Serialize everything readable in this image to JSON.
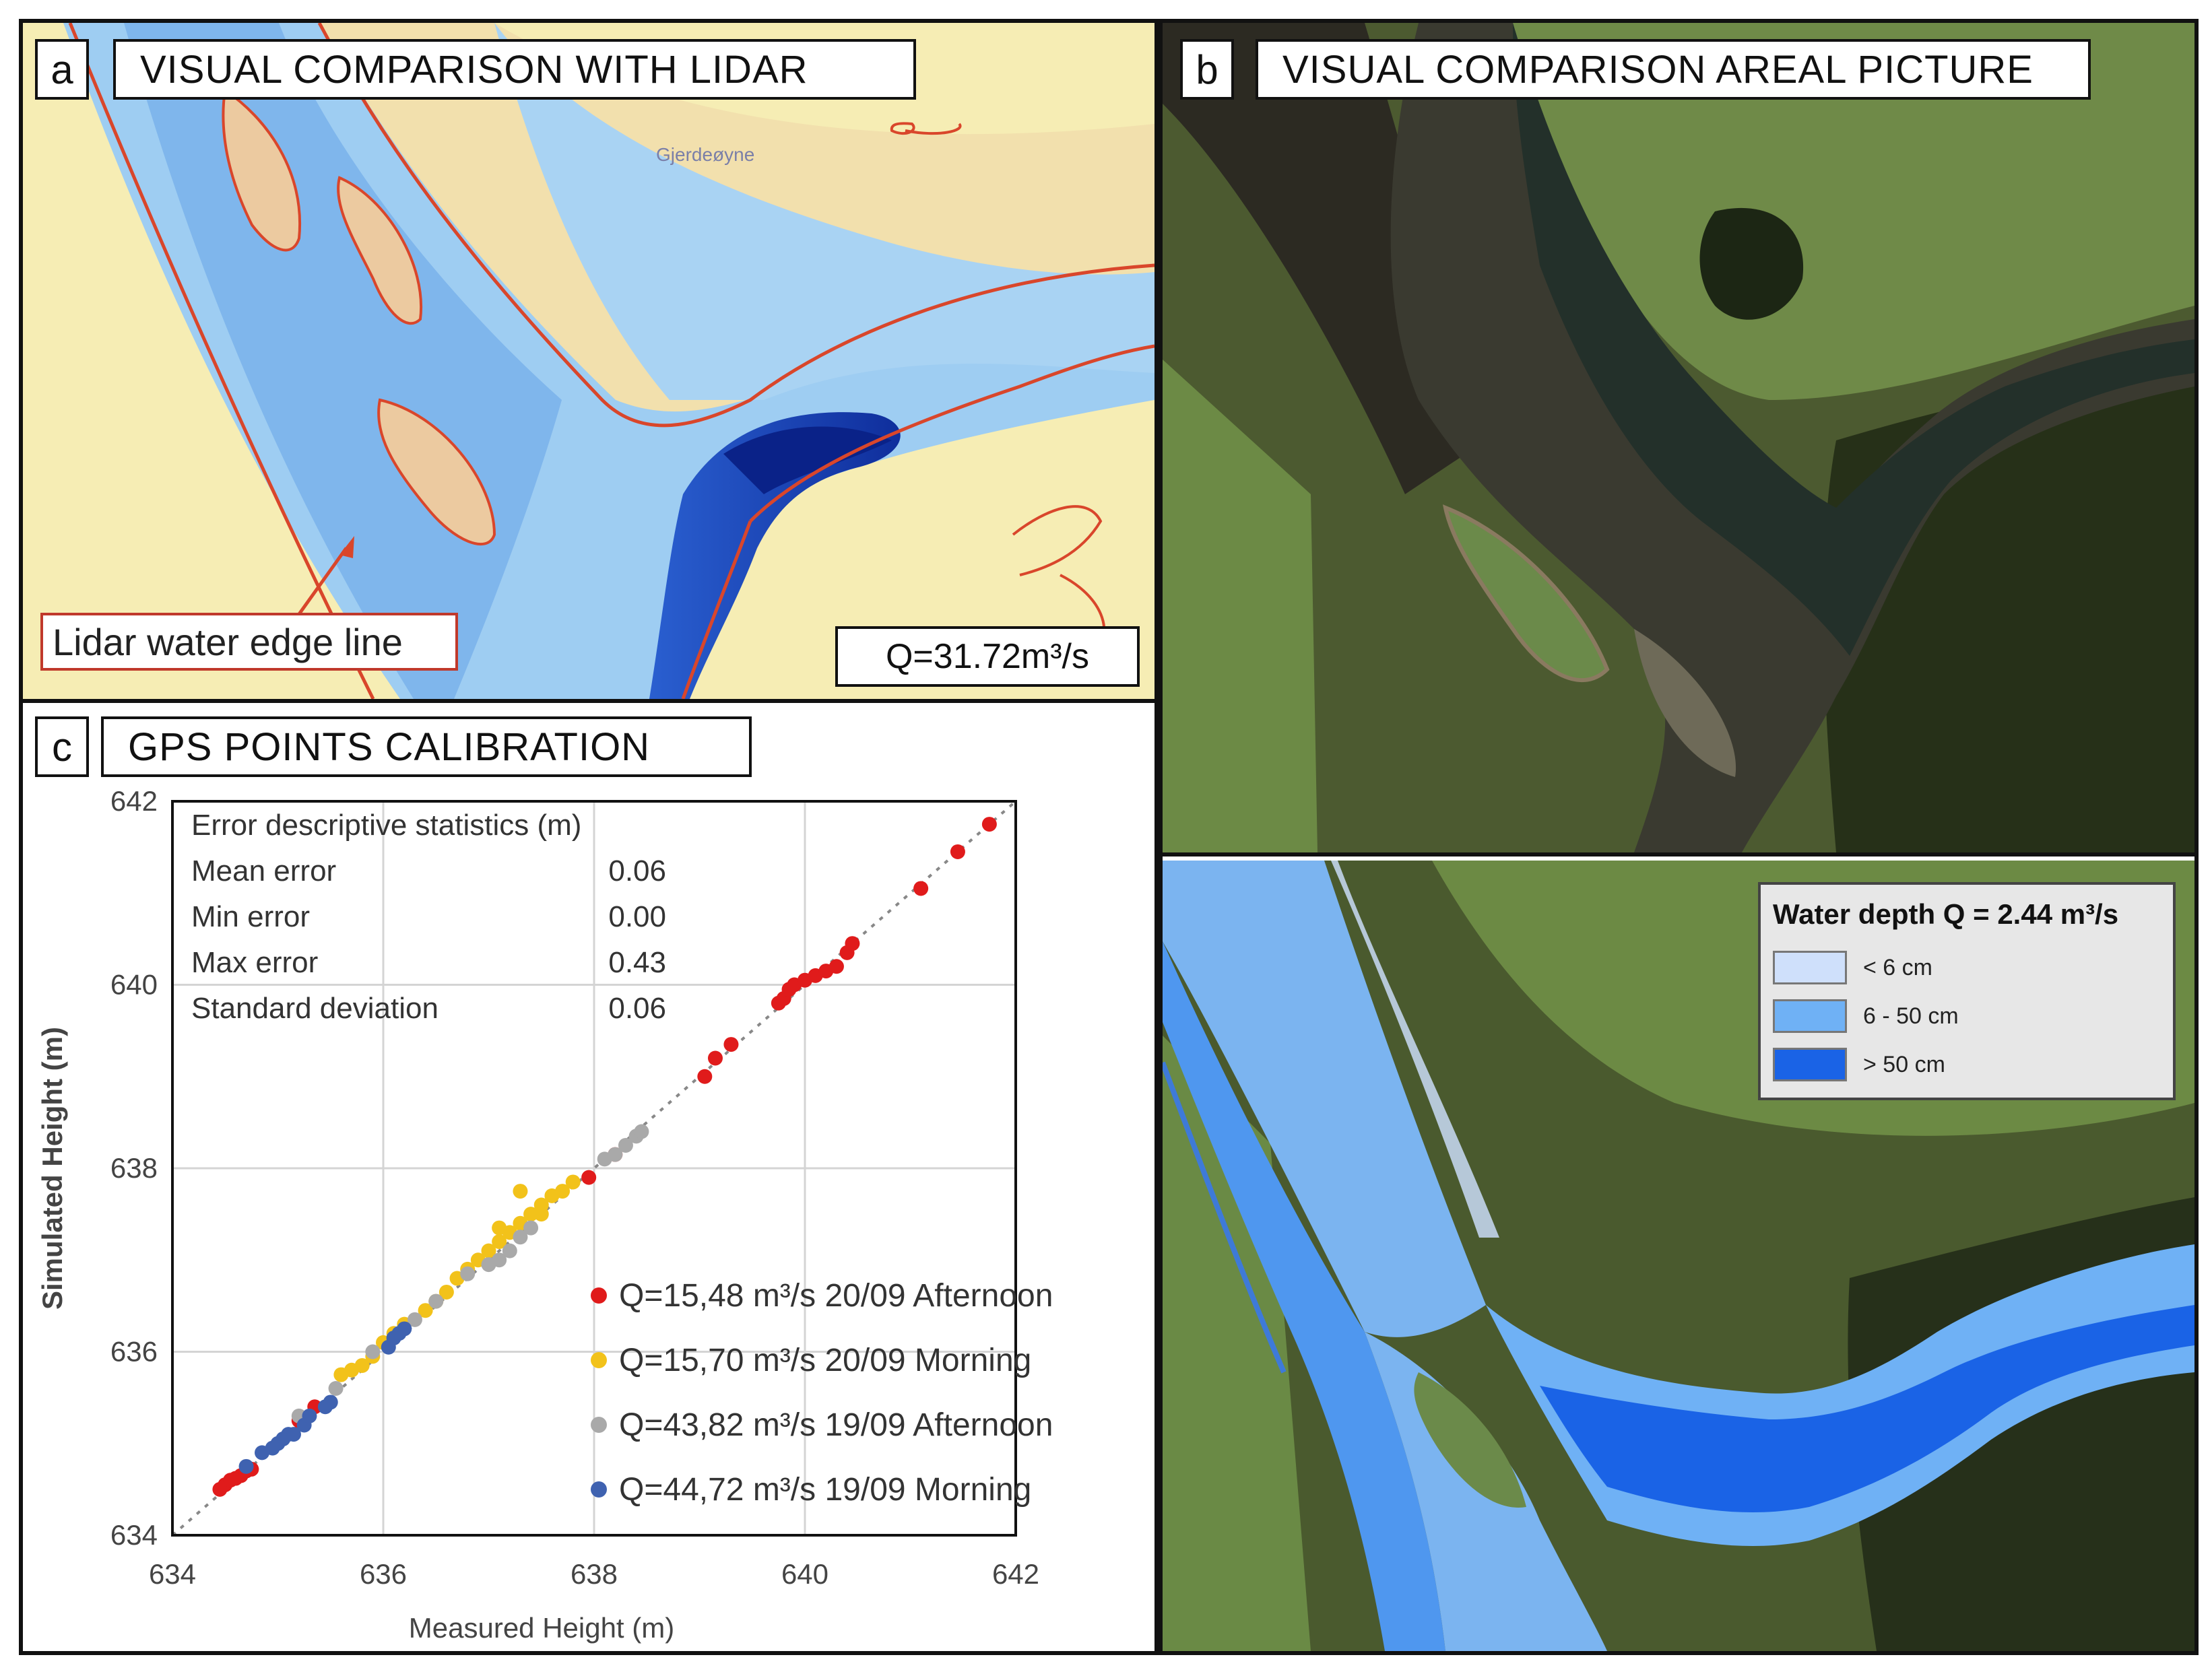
{
  "panel_a": {
    "letter": "a",
    "title": "VISUAL COMPARISON WITH LIDAR",
    "place_name": "Gjerdeøyne",
    "edge_label": "Lidar water edge line",
    "discharge": "Q=31.72m³/s"
  },
  "panel_b": {
    "letter": "b",
    "title": "VISUAL COMPARISON AREAL PICTURE"
  },
  "panel_c": {
    "letter": "c",
    "title": "GPS POINTS CALIBRATION",
    "stats": {
      "header": "Error descriptive statistics (m)",
      "rows": [
        {
          "label": "Mean error",
          "value": "0.06"
        },
        {
          "label": "Min error",
          "value": "0.00"
        },
        {
          "label": "Max error",
          "value": "0.43"
        },
        {
          "label": "Standard deviation",
          "value": "0.06"
        }
      ]
    }
  },
  "panel_d": {
    "legend_title": "Water depth Q = 2.44 m³/s",
    "legend_items": [
      {
        "label": "< 6 cm",
        "color": "#cfe0fb"
      },
      {
        "label": "6 - 50 cm",
        "color": "#6fb1f5"
      },
      {
        "label": "> 50 cm",
        "color": "#1a63e6"
      }
    ]
  },
  "chart_data": {
    "type": "scatter",
    "title": "",
    "xlabel": "Measured Height (m)",
    "ylabel": "Simulated Height (m)",
    "xlim": [
      634,
      642
    ],
    "ylim": [
      634,
      642
    ],
    "xticks": [
      "634",
      "636",
      "638",
      "640",
      "642"
    ],
    "yticks": [
      "634",
      "636",
      "638",
      "640",
      "642"
    ],
    "grid": true,
    "reference_line": "1:1 dotted",
    "legend_position": "bottom-right",
    "series": [
      {
        "name": "Q=15,48 m³/s 20/09 Afternoon",
        "color": "#e01b1b",
        "points": [
          [
            634.45,
            634.5
          ],
          [
            634.5,
            634.55
          ],
          [
            634.55,
            634.6
          ],
          [
            634.6,
            634.62
          ],
          [
            634.65,
            634.65
          ],
          [
            634.7,
            634.7
          ],
          [
            634.75,
            634.72
          ],
          [
            635.2,
            635.25
          ],
          [
            635.35,
            635.4
          ],
          [
            637.95,
            637.9
          ],
          [
            638.2,
            638.15
          ],
          [
            639.05,
            639.0
          ],
          [
            639.15,
            639.2
          ],
          [
            639.3,
            639.35
          ],
          [
            639.75,
            639.8
          ],
          [
            639.8,
            639.85
          ],
          [
            639.85,
            639.95
          ],
          [
            639.9,
            640.0
          ],
          [
            640.0,
            640.05
          ],
          [
            640.1,
            640.1
          ],
          [
            640.2,
            640.15
          ],
          [
            640.3,
            640.2
          ],
          [
            640.4,
            640.35
          ],
          [
            640.45,
            640.45
          ],
          [
            641.1,
            641.05
          ],
          [
            641.45,
            641.45
          ],
          [
            641.75,
            641.75
          ]
        ]
      },
      {
        "name": "Q=15,70 m³/s 20/09 Morning",
        "color": "#f2c21a",
        "points": [
          [
            635.6,
            635.75
          ],
          [
            635.7,
            635.8
          ],
          [
            635.8,
            635.85
          ],
          [
            635.9,
            635.95
          ],
          [
            636.0,
            636.1
          ],
          [
            636.1,
            636.2
          ],
          [
            636.2,
            636.3
          ],
          [
            636.4,
            636.45
          ],
          [
            636.5,
            636.55
          ],
          [
            636.6,
            636.65
          ],
          [
            636.7,
            636.8
          ],
          [
            636.8,
            636.9
          ],
          [
            636.9,
            637.0
          ],
          [
            637.0,
            637.1
          ],
          [
            637.1,
            637.2
          ],
          [
            637.2,
            637.3
          ],
          [
            637.3,
            637.4
          ],
          [
            637.4,
            637.5
          ],
          [
            637.5,
            637.6
          ],
          [
            637.6,
            637.7
          ],
          [
            637.7,
            637.75
          ],
          [
            637.8,
            637.85
          ],
          [
            637.3,
            637.75
          ],
          [
            637.5,
            637.5
          ],
          [
            637.1,
            637.35
          ]
        ]
      },
      {
        "name": "Q=43,82 m³/s 19/09 Afternoon",
        "color": "#a9a9a9",
        "points": [
          [
            635.2,
            635.3
          ],
          [
            635.55,
            635.6
          ],
          [
            635.9,
            636.0
          ],
          [
            636.3,
            636.35
          ],
          [
            636.5,
            636.55
          ],
          [
            636.8,
            636.85
          ],
          [
            637.0,
            636.95
          ],
          [
            637.1,
            637.0
          ],
          [
            637.2,
            637.1
          ],
          [
            637.3,
            637.25
          ],
          [
            637.4,
            637.35
          ],
          [
            638.1,
            638.1
          ],
          [
            638.2,
            638.15
          ],
          [
            638.3,
            638.25
          ],
          [
            638.4,
            638.35
          ],
          [
            638.45,
            638.4
          ]
        ]
      },
      {
        "name": "Q=44,72 m³/s 19/09 Morning",
        "color": "#3f62b0",
        "points": [
          [
            634.7,
            634.75
          ],
          [
            634.85,
            634.9
          ],
          [
            634.95,
            634.95
          ],
          [
            635.0,
            635.0
          ],
          [
            635.05,
            635.05
          ],
          [
            635.1,
            635.1
          ],
          [
            635.15,
            635.1
          ],
          [
            635.25,
            635.2
          ],
          [
            635.3,
            635.3
          ],
          [
            635.45,
            635.4
          ],
          [
            635.5,
            635.45
          ],
          [
            636.05,
            636.05
          ],
          [
            636.1,
            636.15
          ],
          [
            636.15,
            636.2
          ],
          [
            636.2,
            636.25
          ]
        ]
      }
    ]
  }
}
